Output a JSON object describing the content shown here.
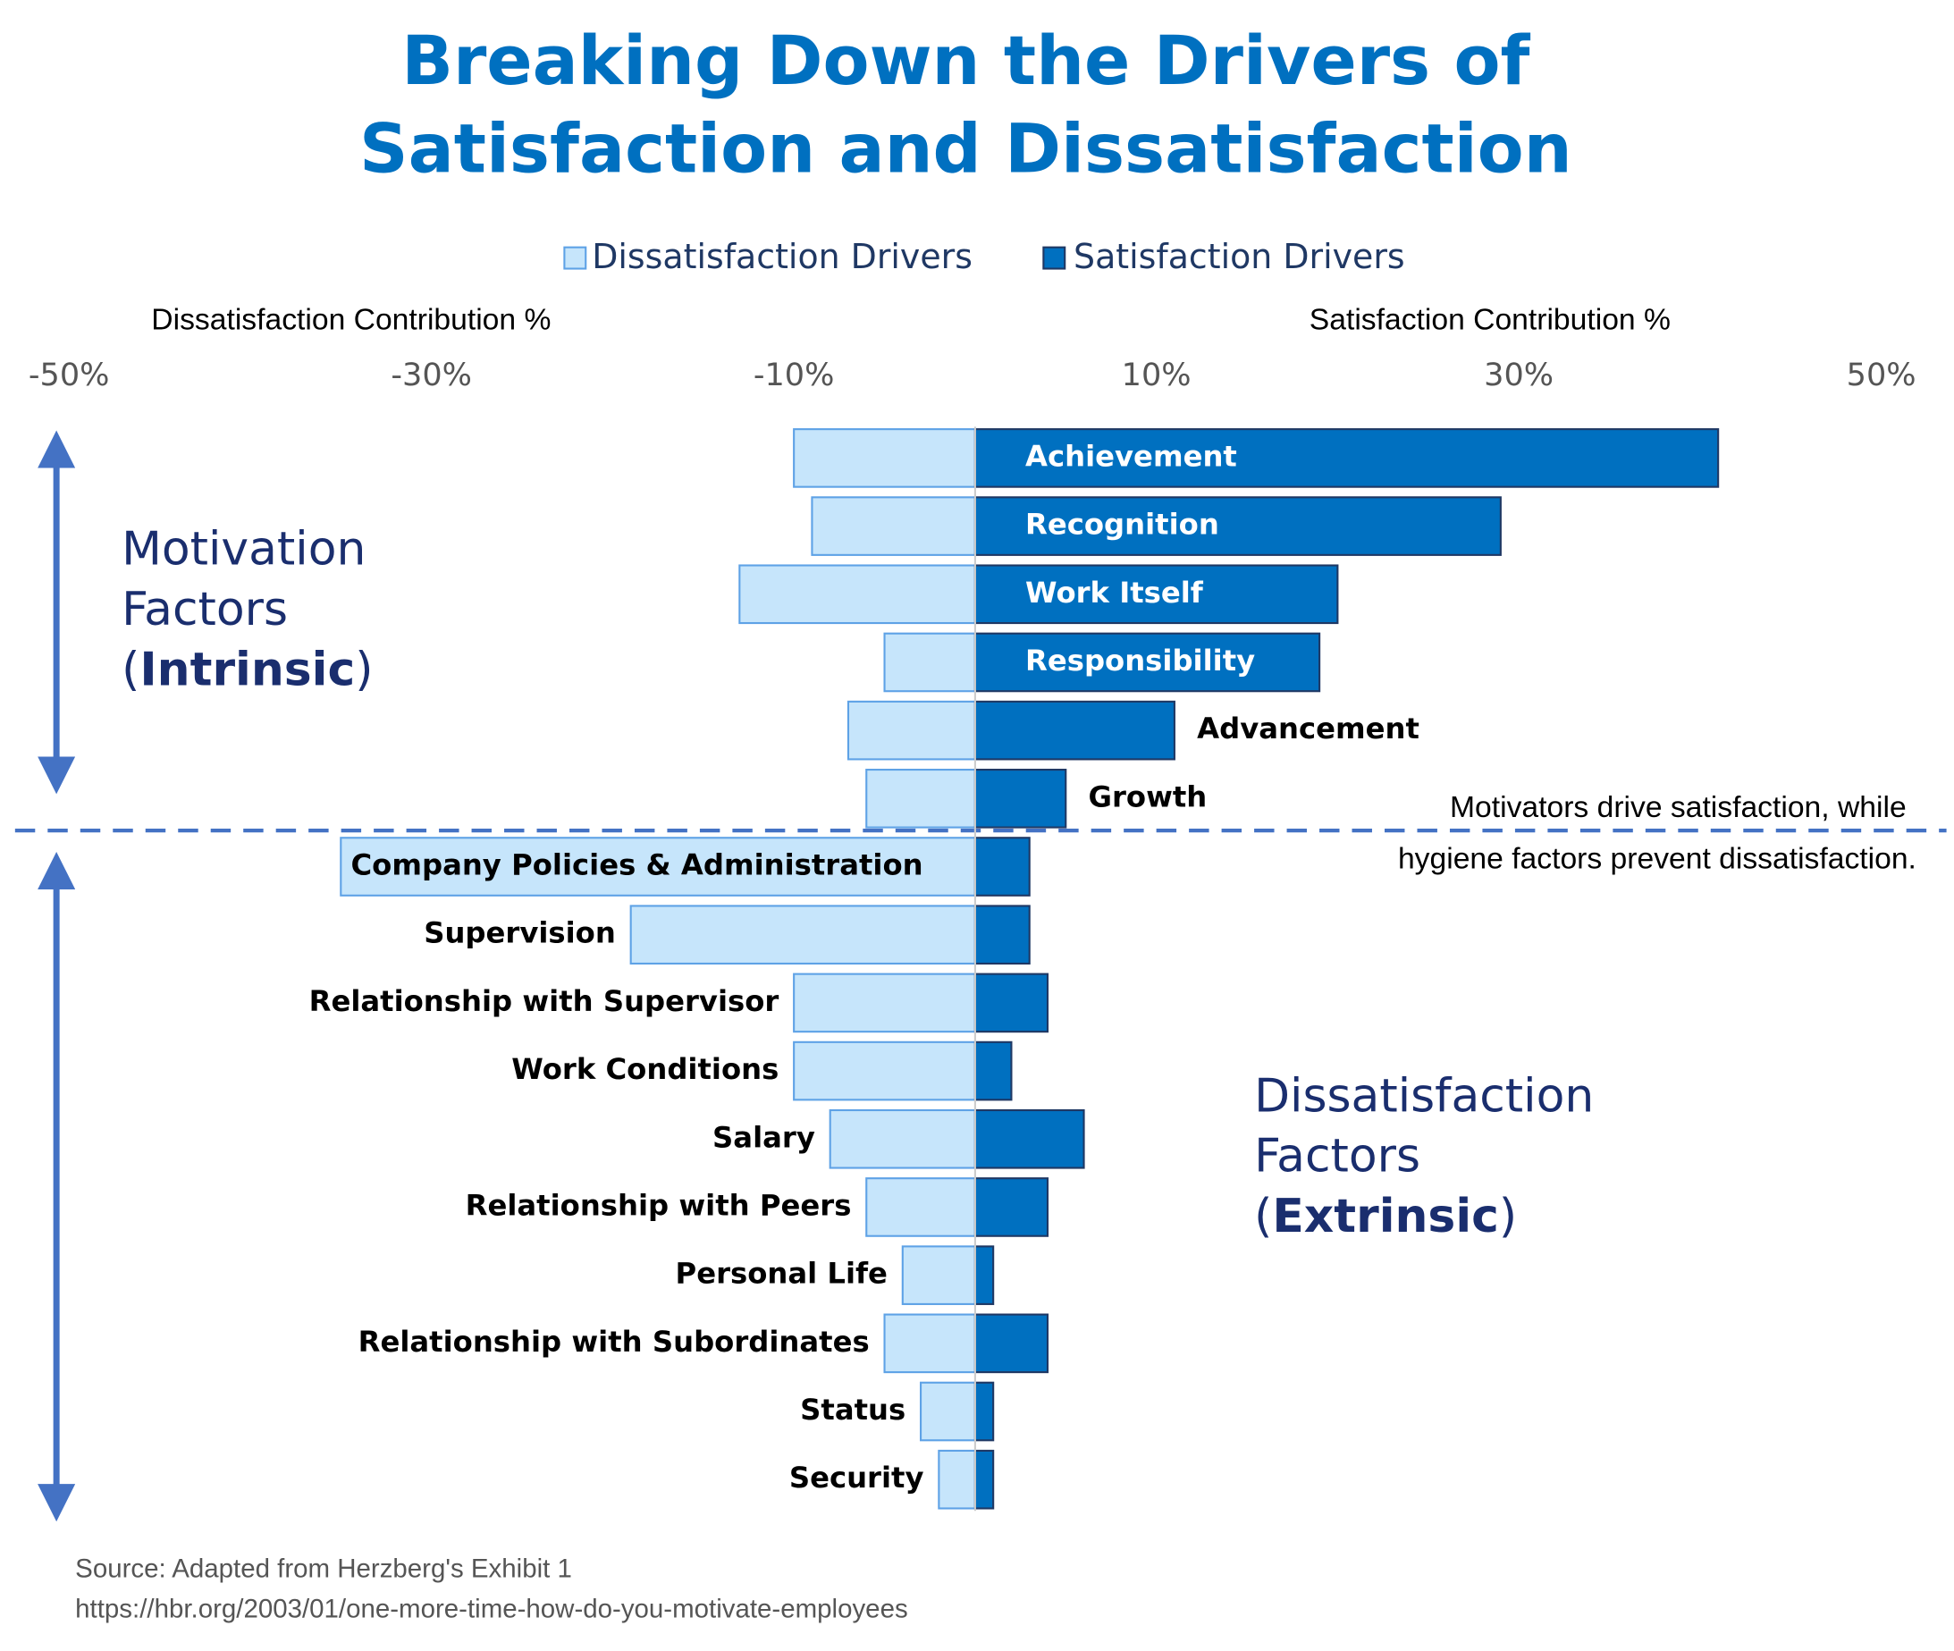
{
  "chart_data": {
    "type": "diverging-bar",
    "title": [
      "Breaking Down the Drivers of",
      "Satisfaction and Dissatisfaction"
    ],
    "x_axis_labels": {
      "left": "Dissatisfaction Contribution %",
      "right": "Satisfaction Contribution %"
    },
    "categories": [
      "Achievement",
      "Recognition",
      "Work Itself",
      "Responsibility",
      "Advancement",
      "Growth",
      "Company Policies & Administration",
      "Supervision",
      "Relationship with Supervisor",
      "Work Conditions",
      "Salary",
      "Relationship with Peers",
      "Personal Life",
      "Relationship with Subordinates",
      "Status",
      "Security"
    ],
    "series": [
      {
        "name": "Dissatisfaction Drivers",
        "color": "#c6e5fb",
        "stroke": "#5ea2e6",
        "values": [
          -10,
          -9,
          -13,
          -5,
          -7,
          -6,
          -35,
          -19,
          -10,
          -10,
          -8,
          -6,
          -4,
          -5,
          -3,
          -2
        ]
      },
      {
        "name": "Satisfaction Drivers",
        "color": "#0070c0",
        "stroke": "#1f3864",
        "values": [
          41,
          29,
          20,
          19,
          11,
          5,
          3,
          3,
          4,
          2,
          6,
          4,
          1,
          4,
          1,
          1
        ]
      }
    ],
    "xlim": [
      -50,
      50
    ],
    "xticks": [
      {
        "value": -50,
        "label": "-50%"
      },
      {
        "value": -30,
        "label": "-30%"
      },
      {
        "value": -10,
        "label": "-10%"
      },
      {
        "value": 10,
        "label": "10%"
      },
      {
        "value": 30,
        "label": "30%"
      },
      {
        "value": 50,
        "label": "50%"
      }
    ],
    "groups": [
      {
        "lines": [
          "Motivation",
          "Factors"
        ],
        "qualifier_parts": [
          "(",
          "Intrinsic",
          ")"
        ]
      },
      {
        "lines": [
          "Dissatisfaction",
          "Factors"
        ],
        "qualifier_parts": [
          "(",
          "Extrinsic",
          ")"
        ]
      }
    ],
    "annotation": [
      "Motivators drive satisfaction, while",
      "hygiene factors prevent dissatisfaction."
    ],
    "source": [
      "Source: Adapted from Herzberg's Exhibit 1",
      "https://hbr.org/2003/01/one-more-time-how-do-you-motivate-employees"
    ]
  }
}
